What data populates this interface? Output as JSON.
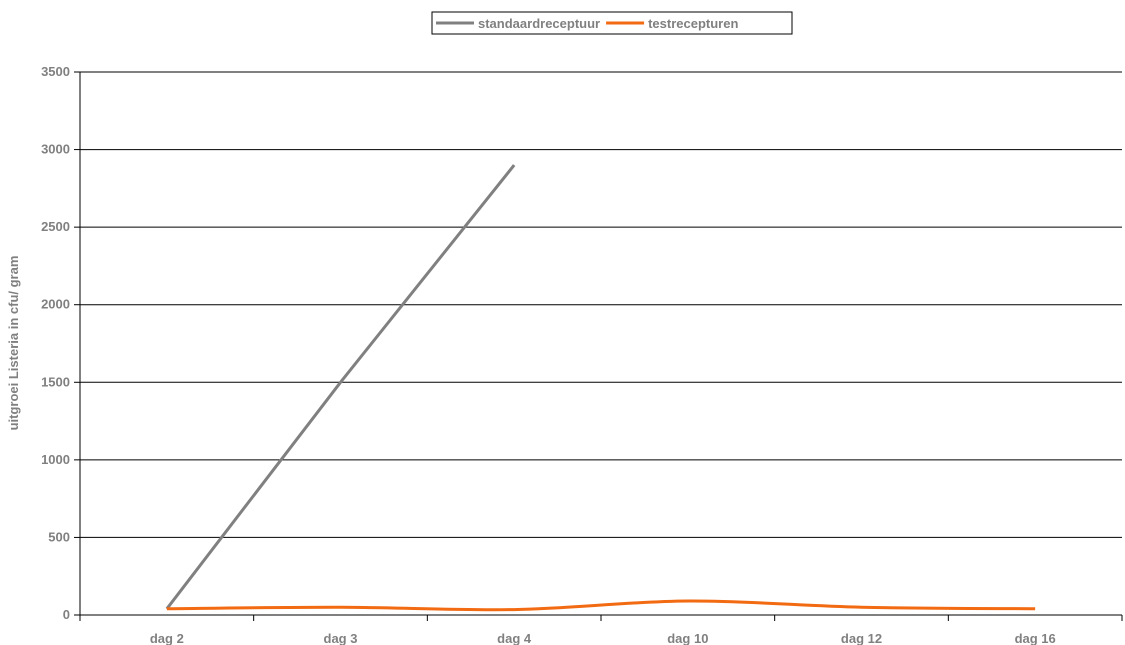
{
  "chart_data": {
    "type": "line",
    "categories": [
      "dag 2",
      "dag 3",
      "dag 4",
      "dag 10",
      "dag 12",
      "dag 16"
    ],
    "series": [
      {
        "name": "standaardreceptuur",
        "color": "#808080",
        "values": [
          40,
          1500,
          2900,
          null,
          null,
          null
        ]
      },
      {
        "name": "testrecepturen",
        "color": "#f26a11",
        "values": [
          40,
          50,
          35,
          90,
          50,
          40
        ]
      }
    ],
    "title": "",
    "xlabel": "",
    "ylabel": "uitgroei Listeria in cfu/ gram",
    "ylim": [
      0,
      3500
    ],
    "yticks": [
      0,
      500,
      1000,
      1500,
      2000,
      2500,
      3000,
      3500
    ],
    "grid": true,
    "legend": "top"
  }
}
